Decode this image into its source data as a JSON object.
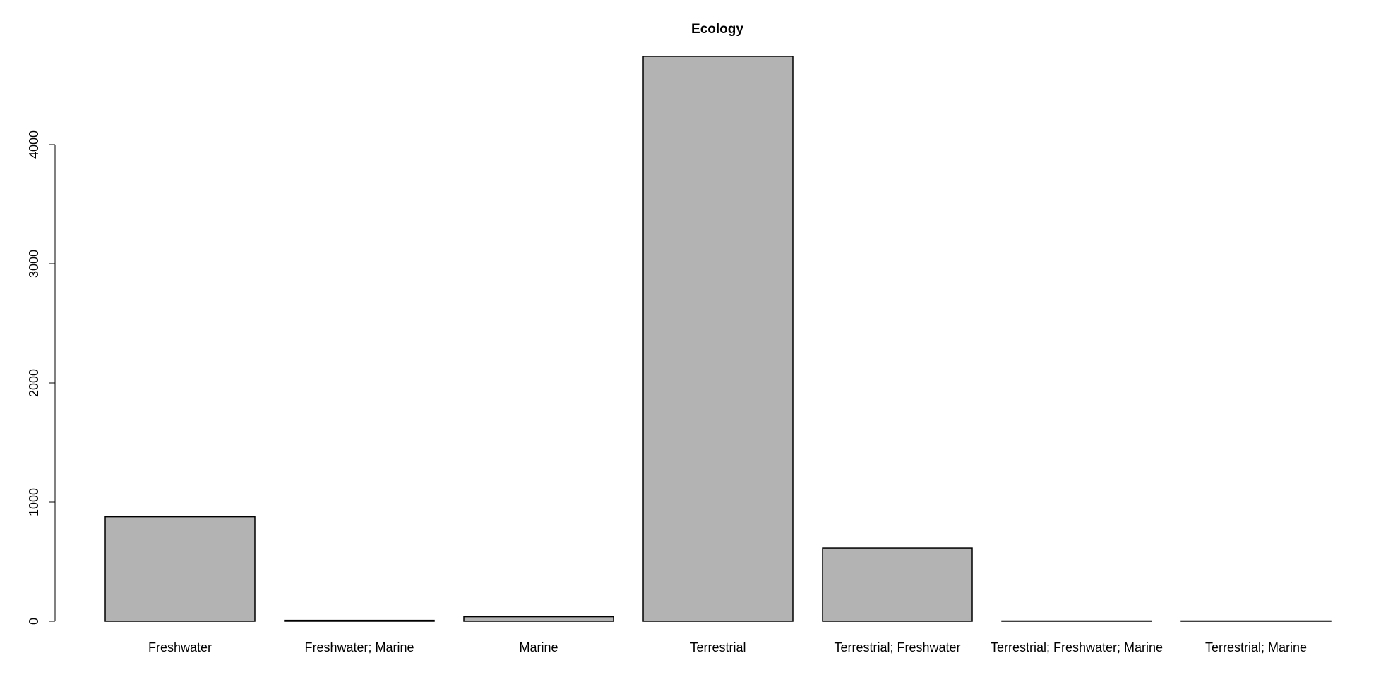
{
  "chart_data": {
    "type": "bar",
    "title": "Ecology",
    "xlabel": "",
    "ylabel": "",
    "categories": [
      "Freshwater",
      "Freshwater; Marine",
      "Marine",
      "Terrestrial",
      "Terrestrial; Freshwater",
      "Terrestrial; Freshwater; Marine",
      "Terrestrial; Marine"
    ],
    "values": [
      878,
      8,
      38,
      4740,
      615,
      2,
      2
    ],
    "ylim": [
      0,
      4740
    ],
    "yticks": [
      0,
      1000,
      2000,
      3000,
      4000
    ],
    "ytick_labels": [
      "0",
      "1000",
      "2000",
      "3000",
      "4000"
    ],
    "grid": false,
    "legend": "none",
    "colors": {
      "bar_fill": "#b3b3b3",
      "bar_stroke": "#000000",
      "axis": "#000000",
      "background": "#ffffff"
    }
  }
}
